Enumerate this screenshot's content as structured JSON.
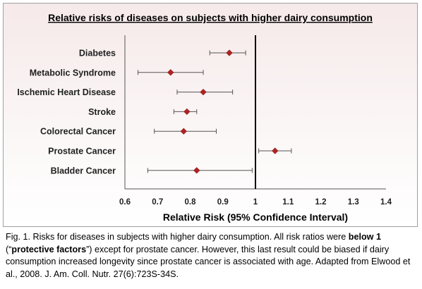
{
  "chart_data": {
    "type": "forest",
    "title": "Relative risks of diseases on subjects with higher dairy consumption",
    "xlabel": "Relative Risk (95% Confidence Interval)",
    "ylabel": "",
    "xlim": [
      0.6,
      1.4
    ],
    "xticks": [
      "0.6",
      "0.7",
      "0.8",
      "0.9",
      "1",
      "1.1",
      "1.2",
      "1.3",
      "1.4"
    ],
    "reference_line": 1,
    "grid": false,
    "marker_color": "#b22222",
    "categories": [
      "Diabetes",
      "Metabolic Syndrome",
      "Ischemic Heart Disease",
      "Stroke",
      "Colorectal Cancer",
      "Prostate Cancer",
      "Bladder Cancer"
    ],
    "values": [
      0.92,
      0.74,
      0.84,
      0.79,
      0.78,
      1.06,
      0.82
    ],
    "ci_low": [
      0.86,
      0.64,
      0.76,
      0.75,
      0.69,
      1.01,
      0.67
    ],
    "ci_high": [
      0.97,
      0.84,
      0.93,
      0.82,
      0.88,
      1.11,
      0.99
    ]
  },
  "caption": {
    "p1": "Fig. 1. Risks for diseases in subjects with higher dairy consumption. All risk ratios were ",
    "b1": "below 1",
    "p2": " (“",
    "b2": "protective factors",
    "p3": "”) except for prostate cancer. However, this last result could be biased if dairy consumption increased longevity since prostate cancer is associated with age. Adapted from Elwood et al., 2008. J. Am. Coll. Nutr. 27(6):723S-34S."
  }
}
